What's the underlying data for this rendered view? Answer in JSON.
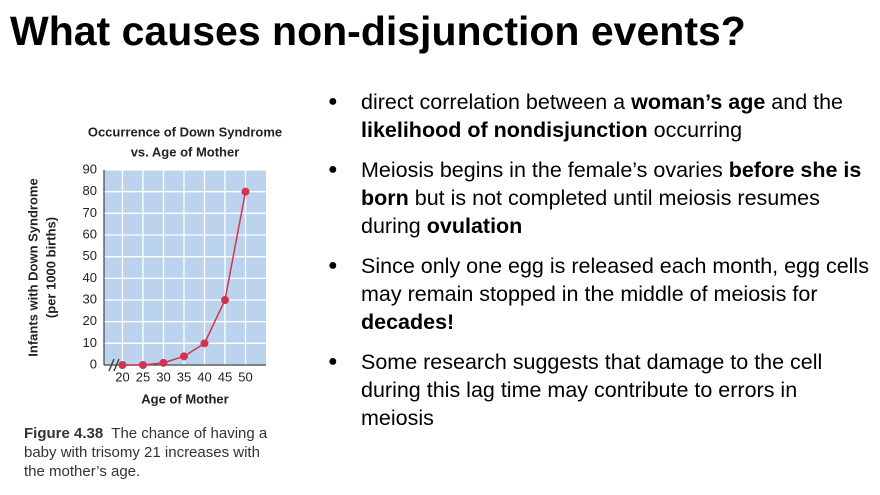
{
  "slide": {
    "title": "What causes non-disjunction events?",
    "bullets": [
      [
        {
          "text": "direct correlation between a "
        },
        {
          "text": "woman’s age",
          "bold": true
        },
        {
          "text": " and the "
        },
        {
          "text": "likelihood of nondisjunction",
          "bold": true
        },
        {
          "text": " occurring"
        }
      ],
      [
        {
          "text": "Meiosis begins in the female’s ovaries "
        },
        {
          "text": "before she is born",
          "bold": true
        },
        {
          "text": " but is not completed until meiosis resumes during "
        },
        {
          "text": "ovulation",
          "bold": true
        }
      ],
      [
        {
          "text": "Since only one egg is released each month, egg cells may remain stopped in the middle of meiosis for "
        },
        {
          "text": "decades!",
          "bold": true
        }
      ],
      [
        {
          "text": "Some research suggests that damage to the cell during this lag time may contribute to errors in meiosis"
        }
      ]
    ]
  },
  "chart_data": {
    "type": "line",
    "title_lines": [
      "Occurrence of Down Syndrome",
      "vs. Age of Mother"
    ],
    "y_label_lines": [
      "Infants with Down Syndrome",
      "(per 1000 births)"
    ],
    "x_label": "Age of Mother",
    "x": [
      20,
      25,
      30,
      35,
      40,
      45,
      50
    ],
    "values": [
      0,
      0,
      1,
      4,
      10,
      30,
      80
    ],
    "color": "#d2334f",
    "xlim": [
      15.5,
      55
    ],
    "xticks": [
      20,
      25,
      30,
      35,
      40,
      45,
      50
    ],
    "ylim": [
      0,
      90
    ],
    "yticks": [
      0,
      10,
      20,
      30,
      40,
      50,
      60,
      70,
      80,
      90
    ],
    "grid": true,
    "background": "#bcd3ee"
  },
  "caption": {
    "label": "Figure 4.38",
    "text": "The chance of having a baby with trisomy 21 increases with the mother’s age."
  }
}
